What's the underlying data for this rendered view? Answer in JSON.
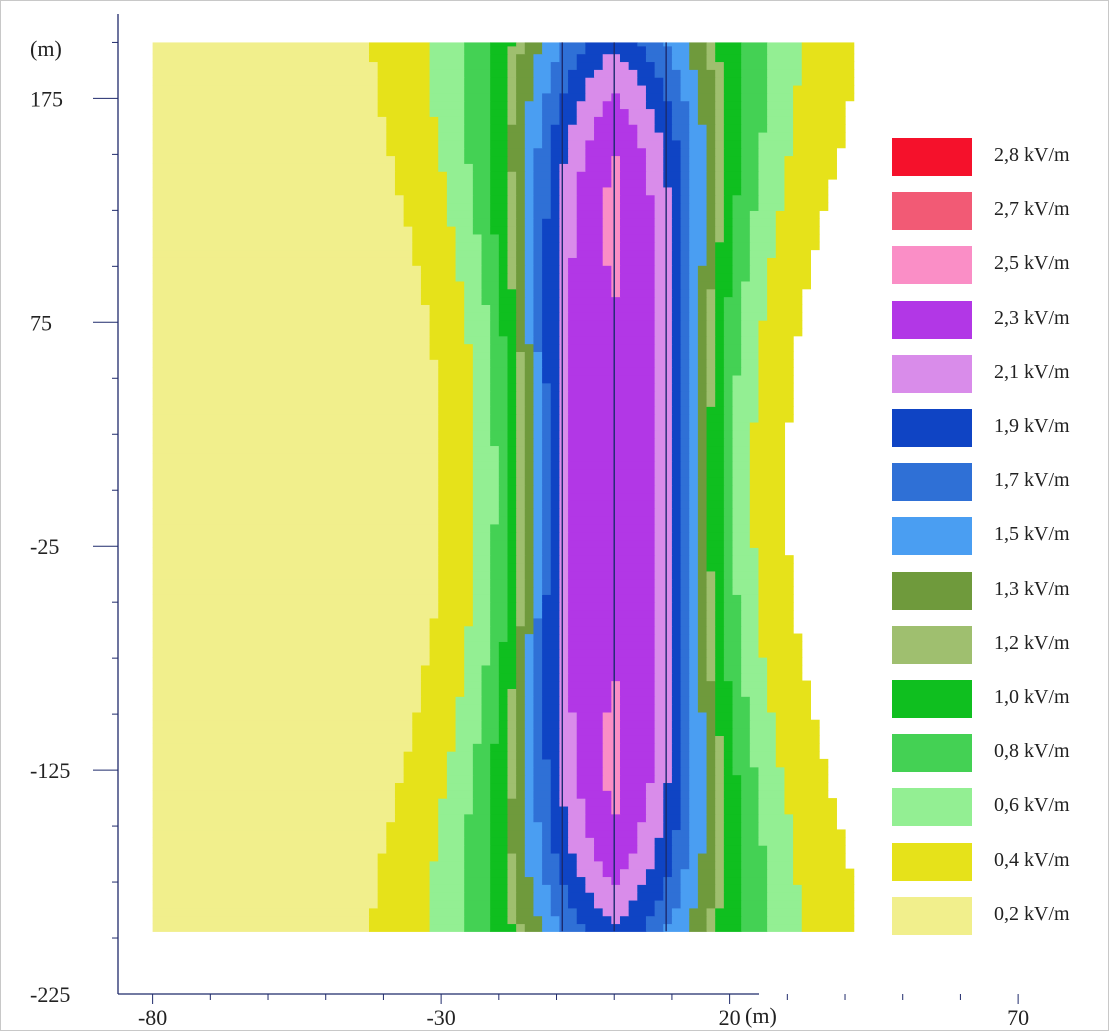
{
  "chart_data": {
    "type": "heatmap",
    "title": "",
    "xlabel": "(m)",
    "ylabel": "(m)",
    "xlim": [
      -86,
      74
    ],
    "ylim": [
      -225,
      200
    ],
    "x_ticks": [
      "-80",
      "-30",
      "20",
      "70"
    ],
    "y_ticks": [
      "175",
      "75",
      "-25",
      "-125",
      "-225"
    ],
    "conductor_x": [
      -9,
      0,
      9
    ],
    "field_extent": {
      "x": [
        -80,
        54
      ],
      "y": [
        -197,
        200
      ]
    },
    "legend_position": "right",
    "legend": [
      {
        "label": "2,8 kV/m",
        "value": 2.8,
        "color": "#f5112b"
      },
      {
        "label": "2,7 kV/m",
        "value": 2.7,
        "color": "#f25a75"
      },
      {
        "label": "2,5 kV/m",
        "value": 2.5,
        "color": "#fa8ec6"
      },
      {
        "label": "2,3 kV/m",
        "value": 2.3,
        "color": "#b237e6"
      },
      {
        "label": "2,1 kV/m",
        "value": 2.1,
        "color": "#d98cea"
      },
      {
        "label": "1,9 kV/m",
        "value": 1.9,
        "color": "#0f44c4"
      },
      {
        "label": "1,7 kV/m",
        "value": 1.7,
        "color": "#2f70d6"
      },
      {
        "label": "1,5 kV/m",
        "value": 1.5,
        "color": "#4a9ef2"
      },
      {
        "label": "1,3 kV/m",
        "value": 1.3,
        "color": "#6f9a3c"
      },
      {
        "label": "1,2 kV/m",
        "value": 1.2,
        "color": "#9fbf6f"
      },
      {
        "label": "1,0 kV/m",
        "value": 1.0,
        "color": "#0fbf1f"
      },
      {
        "label": "0,8 kV/m",
        "value": 0.8,
        "color": "#44d154"
      },
      {
        "label": "0,6 kV/m",
        "value": 0.6,
        "color": "#93ef93"
      },
      {
        "label": "0,4 kV/m",
        "value": 0.4,
        "color": "#e6e21a"
      },
      {
        "label": "0,2 kV/m",
        "value": 0.2,
        "color": "#f1ef8c"
      }
    ]
  }
}
